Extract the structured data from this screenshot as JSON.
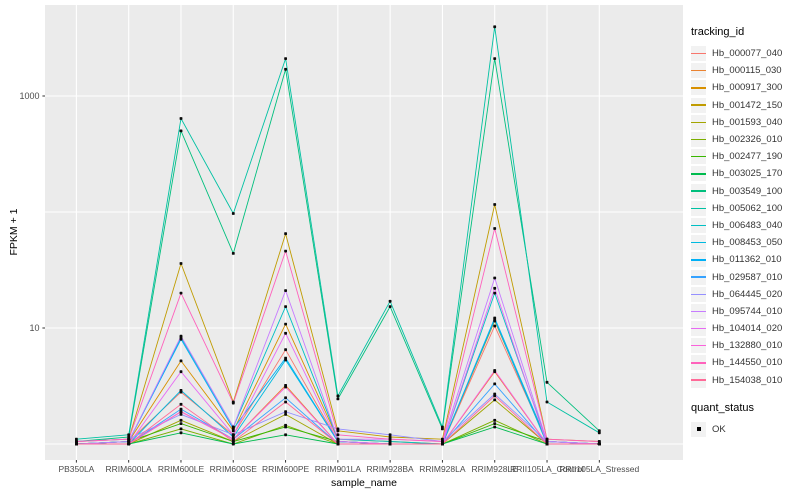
{
  "figure": {
    "background": "#FFFFFF",
    "panel_background": "#EBEBEB",
    "gridline_color": "#FFFFFF",
    "tick_color": "#333333",
    "tick_label_color": "#4D4D4D",
    "point_color": "#0A0A0A"
  },
  "chart_data": {
    "type": "line",
    "title": "",
    "xlabel": "sample_name",
    "ylabel": "FPKM + 1",
    "y_scale": "log10",
    "y_ticks": [
      10,
      1000
    ],
    "y_tick_labels": [
      "10",
      "1000"
    ],
    "y_gridlines": [
      1,
      10,
      100,
      1000
    ],
    "ylim": [
      0.73,
      6100
    ],
    "grid": true,
    "legend_position": "right",
    "point_marker": "black-square",
    "categories": [
      "PB350LA",
      "RRIM600LA",
      "RRIM600LE",
      "RRIM600SE",
      "RRIM600PE",
      "RRIM901LA",
      "RRIM928BA",
      "RRIM928LA",
      "RRIM928LE",
      "RRII105LA_Control",
      "RRII105LA_Stressed"
    ],
    "series": [
      {
        "name": "Hb_000077_040",
        "color": "#F8766D",
        "values": [
          1.0,
          1.05,
          2.8,
          1.2,
          6.5,
          1.05,
          1.0,
          1.0,
          10.4,
          1.05,
          1.0
        ]
      },
      {
        "name": "Hb_000115_030",
        "color": "#EA8331",
        "values": [
          1.0,
          1.0,
          1.9,
          1.1,
          3.2,
          1.0,
          1.0,
          1.0,
          4.2,
          1.0,
          1.0
        ]
      },
      {
        "name": "Hb_000917_300",
        "color": "#D89000",
        "values": [
          1.0,
          1.05,
          5.2,
          1.3,
          10.8,
          1.1,
          1.05,
          1.0,
          11.5,
          1.05,
          1.0
        ]
      },
      {
        "name": "Hb_001472_150",
        "color": "#C09B00",
        "values": [
          1.05,
          1.1,
          36,
          2.3,
          65,
          1.3,
          1.15,
          1.1,
          116,
          1.1,
          1.05
        ]
      },
      {
        "name": "Hb_001593_040",
        "color": "#A3A500",
        "values": [
          1.0,
          1.0,
          1.6,
          1.05,
          1.8,
          1.0,
          1.0,
          1.0,
          2.4,
          1.0,
          1.0
        ]
      },
      {
        "name": "Hb_002326_010",
        "color": "#7CAE00",
        "values": [
          1.0,
          1.0,
          1.35,
          1.0,
          1.45,
          1.0,
          1.0,
          1.0,
          1.6,
          1.0,
          1.0
        ]
      },
      {
        "name": "Hb_002477_190",
        "color": "#39B600",
        "values": [
          1.0,
          1.05,
          1.5,
          1.05,
          1.4,
          1.05,
          1.0,
          1.0,
          1.5,
          1.05,
          1.0
        ]
      },
      {
        "name": "Hb_003025_170",
        "color": "#00BB4E",
        "values": [
          1.0,
          1.0,
          1.25,
          1.0,
          1.2,
          1.0,
          1.0,
          1.0,
          1.4,
          1.0,
          1.0
        ]
      },
      {
        "name": "Hb_003549_100",
        "color": "#00BF7D",
        "values": [
          1.05,
          1.15,
          500,
          44,
          1700,
          2.45,
          15.3,
          1.35,
          2100,
          3.4,
          1.3
        ]
      },
      {
        "name": "Hb_005062_100",
        "color": "#00C1A3",
        "values": [
          1.1,
          1.2,
          640,
          97,
          2100,
          2.6,
          17,
          1.4,
          3950,
          2.3,
          1.25
        ]
      },
      {
        "name": "Hb_006483_040",
        "color": "#00BFC4",
        "values": [
          1.0,
          1.05,
          8.3,
          1.4,
          15.3,
          1.1,
          1.05,
          1.0,
          20,
          1.05,
          1.0
        ]
      },
      {
        "name": "Hb_008453_050",
        "color": "#00BAE0",
        "values": [
          1.0,
          1.0,
          2.9,
          1.15,
          5.3,
          1.05,
          1.0,
          1.0,
          11.8,
          1.0,
          1.0
        ]
      },
      {
        "name": "Hb_011362_010",
        "color": "#00B0F6",
        "values": [
          1.0,
          1.05,
          8.0,
          1.35,
          5.5,
          1.05,
          1.0,
          1.0,
          12.2,
          1.05,
          1.0
        ]
      },
      {
        "name": "Hb_029587_010",
        "color": "#35A2FF",
        "values": [
          1.0,
          1.0,
          2.0,
          1.1,
          2.5,
          1.0,
          1.0,
          1.0,
          3.3,
          1.0,
          1.0
        ]
      },
      {
        "name": "Hb_064445_020",
        "color": "#9590FF",
        "values": [
          1.05,
          1.1,
          1.8,
          1.2,
          1.9,
          1.35,
          1.2,
          1.05,
          2.7,
          1.05,
          1.0
        ]
      },
      {
        "name": "Hb_095744_010",
        "color": "#C77CFF",
        "values": [
          1.0,
          1.05,
          8.5,
          1.4,
          21,
          1.1,
          1.1,
          1.05,
          27,
          1.05,
          1.0
        ]
      },
      {
        "name": "Hb_104014_020",
        "color": "#E76BF3",
        "values": [
          1.0,
          1.0,
          4.2,
          1.2,
          9.0,
          1.05,
          1.0,
          1.0,
          22,
          1.0,
          1.0
        ]
      },
      {
        "name": "Hb_132880_010",
        "color": "#FA62DB",
        "values": [
          1.0,
          1.0,
          1.9,
          1.1,
          3.1,
          1.0,
          1.0,
          1.0,
          4.3,
          1.0,
          1.0
        ]
      },
      {
        "name": "Hb_144550_010",
        "color": "#FF62BC",
        "values": [
          1.05,
          1.1,
          20,
          2.25,
          46,
          1.2,
          1.1,
          1.05,
          72,
          1.1,
          1.05
        ]
      },
      {
        "name": "Hb_154038_010",
        "color": "#FF6A98",
        "values": [
          1.0,
          1.0,
          2.2,
          1.05,
          2.3,
          1.0,
          1.0,
          1.0,
          2.6,
          1.0,
          1.0
        ]
      }
    ]
  },
  "legend": {
    "tracking_title": "tracking_id",
    "quant_title": "quant_status",
    "quant_items": [
      {
        "label": "OK",
        "symbol": "black-square"
      }
    ]
  }
}
